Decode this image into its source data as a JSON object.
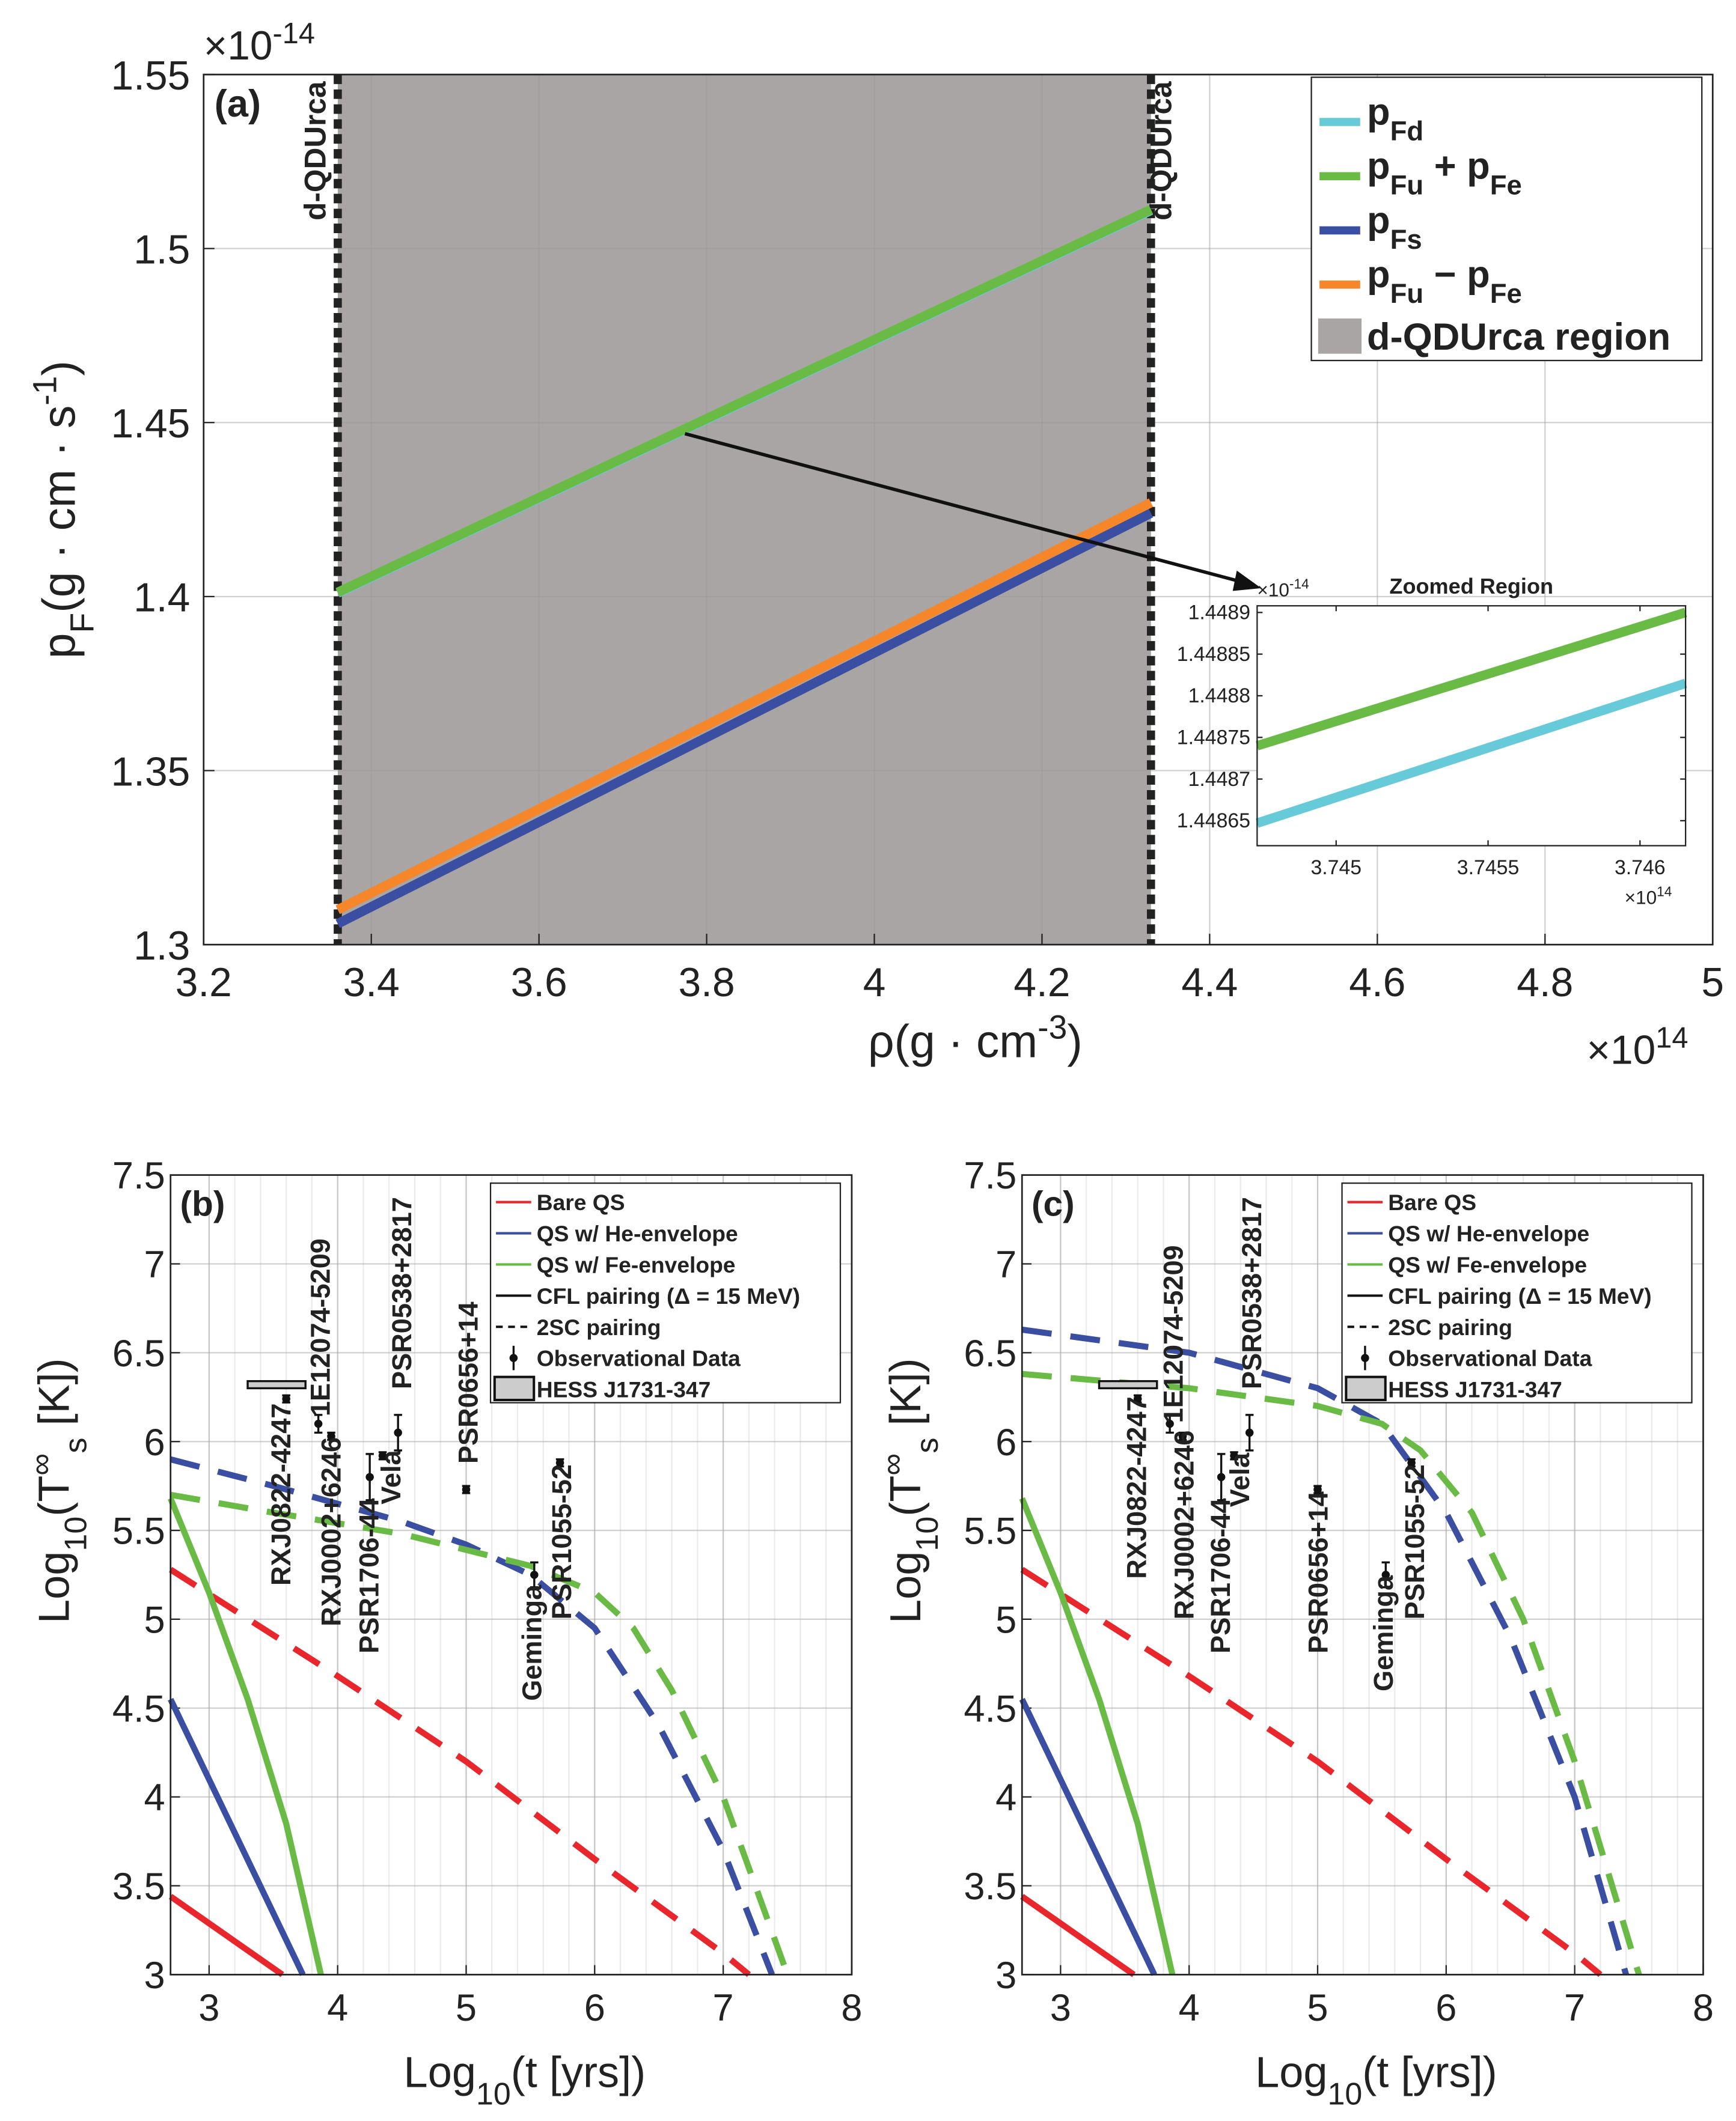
{
  "chart_data": [
    {
      "id": "a",
      "type": "line",
      "panel_label": "(a)",
      "xlabel": "ρ(g · cm",
      "xlabel_exp": "-3",
      "xlabel_end": ")",
      "ylabel": "p",
      "ylabel_sub": "F",
      "ylabel_mid": "(g · cm · s",
      "ylabel_exp": "-1",
      "ylabel_end": ")",
      "x_multiplier": "×10",
      "x_multiplier_exp": "14",
      "y_multiplier": "×10",
      "y_multiplier_exp": "-14",
      "xlim": [
        3.2,
        5
      ],
      "ylim": [
        1.3,
        1.55
      ],
      "xticks": [
        "3.2",
        "3.4",
        "3.6",
        "3.8",
        "4",
        "4.2",
        "4.4",
        "4.6",
        "4.8",
        "5"
      ],
      "yticks": [
        "1.3",
        "1.35",
        "1.4",
        "1.45",
        "1.5",
        "1.55"
      ],
      "grid": true,
      "region": {
        "x": [
          3.36,
          4.33
        ],
        "color": "#a9a5a4",
        "boundary_label": "d-QDUrca"
      },
      "series": [
        {
          "name": "p",
          "sub": "Fd",
          "label_rest": "",
          "color": "#67cad8",
          "x": [
            3.36,
            4.33
          ],
          "y": [
            1.401,
            1.511
          ]
        },
        {
          "name": "p",
          "sub": "Fu",
          "label_rest": " + p",
          "sub2": "Fe",
          "color": "#6abb45",
          "x": [
            3.36,
            4.33
          ],
          "y": [
            1.4012,
            1.5112
          ]
        },
        {
          "name": "p",
          "sub": "Fs",
          "label_rest": "",
          "color": "#3a4ea2",
          "x": [
            3.36,
            4.33
          ],
          "y": [
            1.306,
            1.424
          ]
        },
        {
          "name": "p",
          "sub": "Fu",
          "label_rest": " − p",
          "sub2": "Fe",
          "color": "#f5862a",
          "x": [
            3.36,
            4.33
          ],
          "y": [
            1.31,
            1.427
          ]
        }
      ],
      "legend_region_label": "d-QDUrca region",
      "legend_position": "top-right"
    },
    {
      "id": "inset",
      "type": "line",
      "title": "Zoomed Region",
      "x_multiplier": "×10",
      "x_multiplier_exp": "14",
      "y_multiplier": "×10",
      "y_multiplier_exp": "-14",
      "xlim": [
        3.74474,
        3.74615
      ],
      "ylim": [
        1.44862,
        1.448908
      ],
      "xticks": [
        {
          "v": 3.745,
          "t": "3.745"
        },
        {
          "v": 3.7455,
          "t": "3.7455"
        },
        {
          "v": 3.746,
          "t": "3.746"
        }
      ],
      "yticks": [
        {
          "v": 1.44865,
          "t": "1.44865"
        },
        {
          "v": 1.4487,
          "t": "1.4487"
        },
        {
          "v": 1.44875,
          "t": "1.44875"
        },
        {
          "v": 1.4488,
          "t": "1.4488"
        },
        {
          "v": 1.44885,
          "t": "1.44885"
        },
        {
          "v": 1.4489,
          "t": "1.4489"
        }
      ],
      "series": [
        {
          "name": "pFu + pFe",
          "color": "#6abb45",
          "x": [
            3.74474,
            3.74615
          ],
          "y": [
            1.44874,
            1.4489
          ]
        },
        {
          "name": "pFd",
          "color": "#67cad8",
          "x": [
            3.74474,
            3.74615
          ],
          "y": [
            1.448647,
            1.448815
          ]
        }
      ]
    },
    {
      "id": "b",
      "type": "line",
      "panel_label": "(b)",
      "xlabel": "Log",
      "xlabel_sub": "10",
      "xlabel_rest": "(t [yrs])",
      "ylabel": "Log",
      "ylabel_sub": "10",
      "ylabel_mid": "(T",
      "ylabel_sup": "∞",
      "ylabel_sub2": "s",
      "ylabel_end": " [K])",
      "xlim": [
        2.7,
        8
      ],
      "ylim": [
        3,
        7.5
      ],
      "xticks": [
        "3",
        "4",
        "5",
        "6",
        "7",
        "8"
      ],
      "yticks": [
        "3",
        "3.5",
        "4",
        "4.5",
        "5",
        "5.5",
        "6",
        "6.5",
        "7",
        "7.5"
      ],
      "series": [
        {
          "name": "Bare QS CFL",
          "color": "#e8262b",
          "dash": false,
          "x": [
            2.7,
            3.57
          ],
          "y": [
            3.44,
            3.0
          ]
        },
        {
          "name": "Bare QS 2SC",
          "color": "#e8262b",
          "dash": true,
          "x": [
            2.7,
            4.0,
            5.0,
            6.0,
            7.0,
            7.2
          ],
          "y": [
            5.28,
            4.68,
            4.2,
            3.65,
            3.12,
            3.0
          ]
        },
        {
          "name": "He CFL",
          "color": "#3a4ea2",
          "dash": false,
          "x": [
            2.7,
            3.73
          ],
          "y": [
            4.55,
            3.0
          ]
        },
        {
          "name": "Fe CFL",
          "color": "#6abb45",
          "dash": false,
          "x": [
            2.7,
            3.0,
            3.3,
            3.6,
            3.87
          ],
          "y": [
            5.68,
            5.15,
            4.55,
            3.85,
            3.0
          ]
        },
        {
          "name": "He 2SC",
          "color": "#3a4ea2",
          "dash": true,
          "x": [
            2.7,
            3.5,
            4.5,
            5.0,
            5.5,
            6.0,
            6.5,
            7.0,
            7.38
          ],
          "y": [
            5.9,
            5.75,
            5.55,
            5.42,
            5.25,
            4.95,
            4.4,
            3.7,
            3.0
          ]
        },
        {
          "name": "Fe 2SC",
          "color": "#6abb45",
          "dash": true,
          "x": [
            2.7,
            3.5,
            4.5,
            5.5,
            6.0,
            6.3,
            6.6,
            7.0,
            7.5
          ],
          "y": [
            5.7,
            5.6,
            5.48,
            5.3,
            5.15,
            4.95,
            4.6,
            4.0,
            3.0
          ]
        }
      ],
      "observations": [
        {
          "name": "RXJ0822-4247",
          "x": 3.6,
          "y": 6.24,
          "err": 0.02
        },
        {
          "name": "1E12074-5209",
          "x": 3.85,
          "y": 6.1,
          "err": 0.05
        },
        {
          "name": "RXJ0002+6246",
          "x": 3.95,
          "y": 6.03,
          "err": 0.02
        },
        {
          "name": "PSR1706-44",
          "x": 4.25,
          "y": 5.8,
          "err": 0.13
        },
        {
          "name": "Vela",
          "x": 4.35,
          "y": 5.92,
          "err": 0.02
        },
        {
          "name": "PSR0538+2817",
          "x": 4.47,
          "y": 6.05,
          "err": 0.1
        },
        {
          "name": "PSR0656+14",
          "x": 5.0,
          "y": 5.73,
          "err": 0.02
        },
        {
          "name": "Geminga",
          "x": 5.53,
          "y": 5.25,
          "err": 0.07
        },
        {
          "name": "PSR1055-52",
          "x": 5.73,
          "y": 5.88,
          "err": 0.02
        }
      ],
      "hess_box": {
        "x": [
          3.3,
          3.75
        ],
        "y": [
          6.3,
          6.34
        ]
      },
      "legend": [
        "Bare QS",
        "QS w/ He-envelope",
        "QS w/ Fe-envelope",
        "CFL pairing (Δ = 15 MeV)",
        "2SC pairing",
        "Observational Data",
        "HESS J1731-347"
      ],
      "legend_position": "top-right"
    },
    {
      "id": "c",
      "type": "line",
      "panel_label": "(c)",
      "xlabel": "Log",
      "xlabel_sub": "10",
      "xlabel_rest": "(t [yrs])",
      "ylabel": "Log",
      "ylabel_sub": "10",
      "ylabel_mid": "(T",
      "ylabel_sup": "∞",
      "ylabel_sub2": "s",
      "ylabel_end": " [K])",
      "xlim": [
        2.7,
        8
      ],
      "ylim": [
        3,
        7.5
      ],
      "xticks": [
        "3",
        "4",
        "5",
        "6",
        "7",
        "8"
      ],
      "yticks": [
        "3",
        "3.5",
        "4",
        "4.5",
        "5",
        "5.5",
        "6",
        "6.5",
        "7",
        "7.5"
      ],
      "series": [
        {
          "name": "Bare QS CFL",
          "color": "#e8262b",
          "dash": false,
          "x": [
            2.7,
            3.57
          ],
          "y": [
            3.44,
            3.0
          ]
        },
        {
          "name": "Bare QS 2SC",
          "color": "#e8262b",
          "dash": true,
          "x": [
            2.7,
            4.0,
            5.0,
            6.0,
            7.0,
            7.2
          ],
          "y": [
            5.28,
            4.68,
            4.2,
            3.65,
            3.12,
            3.0
          ]
        },
        {
          "name": "He CFL",
          "color": "#3a4ea2",
          "dash": false,
          "x": [
            2.7,
            3.73
          ],
          "y": [
            4.55,
            3.0
          ]
        },
        {
          "name": "Fe CFL",
          "color": "#6abb45",
          "dash": false,
          "x": [
            2.7,
            3.0,
            3.3,
            3.6,
            3.87
          ],
          "y": [
            5.68,
            5.15,
            4.55,
            3.85,
            3.0
          ]
        },
        {
          "name": "He 2SC",
          "color": "#3a4ea2",
          "dash": true,
          "x": [
            2.7,
            4.0,
            5.0,
            5.5,
            6.0,
            6.5,
            7.0,
            7.4
          ],
          "y": [
            6.63,
            6.5,
            6.3,
            6.1,
            5.6,
            4.9,
            4.0,
            3.0
          ]
        },
        {
          "name": "Fe 2SC",
          "color": "#6abb45",
          "dash": true,
          "x": [
            2.7,
            4.0,
            5.0,
            5.5,
            5.8,
            6.2,
            6.6,
            7.0,
            7.5
          ],
          "y": [
            6.38,
            6.3,
            6.2,
            6.1,
            5.95,
            5.6,
            5.0,
            4.2,
            3.0
          ]
        }
      ],
      "observations": [
        {
          "name": "RXJ0822-4247",
          "x": 3.6,
          "y": 6.24,
          "err": 0.02
        },
        {
          "name": "1E12074-5209",
          "x": 3.85,
          "y": 6.1,
          "err": 0.05
        },
        {
          "name": "RXJ0002+6246",
          "x": 3.95,
          "y": 6.03,
          "err": 0.02
        },
        {
          "name": "PSR1706-44",
          "x": 4.25,
          "y": 5.8,
          "err": 0.13
        },
        {
          "name": "Vela",
          "x": 4.35,
          "y": 5.92,
          "err": 0.02
        },
        {
          "name": "PSR0538+2817",
          "x": 4.47,
          "y": 6.05,
          "err": 0.1
        },
        {
          "name": "PSR0656+14",
          "x": 5.0,
          "y": 5.73,
          "err": 0.02
        },
        {
          "name": "Geminga",
          "x": 5.53,
          "y": 5.25,
          "err": 0.07
        },
        {
          "name": "PSR1055-52",
          "x": 5.73,
          "y": 5.88,
          "err": 0.02
        }
      ],
      "hess_box": {
        "x": [
          3.3,
          3.75
        ],
        "y": [
          6.3,
          6.34
        ]
      },
      "legend": [
        "Bare QS",
        "QS w/ He-envelope",
        "QS w/ Fe-envelope",
        "CFL pairing (Δ = 15 MeV)",
        "2SC pairing",
        "Observational Data",
        "HESS J1731-347"
      ],
      "legend_position": "top-right"
    }
  ]
}
